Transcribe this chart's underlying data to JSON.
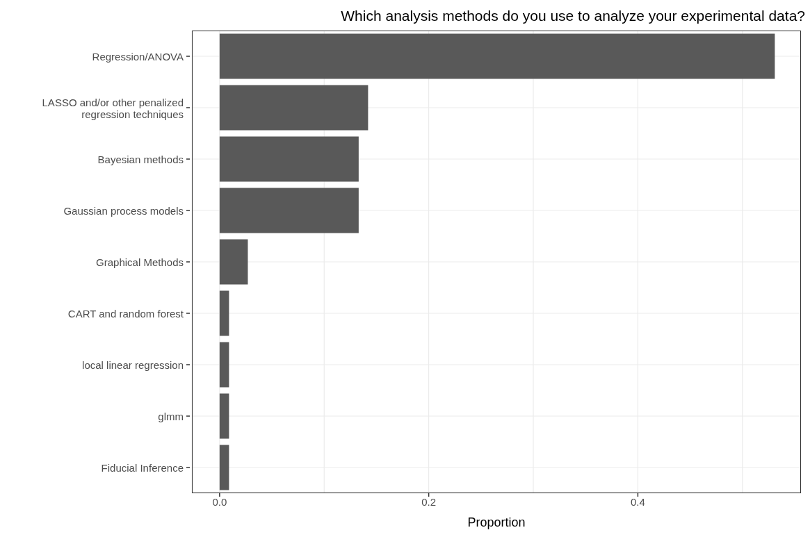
{
  "chart_data": {
    "type": "bar",
    "orientation": "horizontal",
    "title": "Which analysis methods do you use to analyze your experimental data?",
    "xlabel": "Proportion",
    "categories": [
      "Regression/ANOVA",
      "LASSO and/or other penalized regression techniques",
      "Bayesian methods",
      "Gaussian process models",
      "Graphical Methods",
      "CART and random forest",
      "local linear regression",
      "glmm",
      "Fiducial Inference"
    ],
    "values": [
      0.531,
      0.142,
      0.133,
      0.133,
      0.027,
      0.009,
      0.009,
      0.009,
      0.009
    ],
    "color": "#595959",
    "xlim": [
      -0.0265,
      0.556
    ],
    "xticks": [
      {
        "value": 0,
        "label": "0.0"
      },
      {
        "value": 0.1,
        "label": null
      },
      0.2,
      {
        "value": 0.3,
        "label": null
      },
      0.4,
      {
        "value": 0.5,
        "label": null
      }
    ],
    "grid": true
  }
}
